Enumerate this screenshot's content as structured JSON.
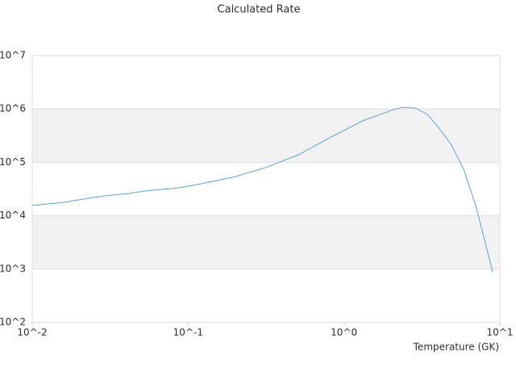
{
  "chart_data": {
    "type": "line",
    "title": "Calculated Rate",
    "x_label": "Temperature (GK)",
    "x_log": true,
    "y_log": true,
    "grid": true,
    "alternate_bands": true,
    "band_color": "#f2f2f2",
    "xlim": [
      0.01,
      10
    ],
    "ylim": [
      100,
      10000000
    ],
    "xticks": [
      {
        "value": 0.01,
        "label": "10^-2"
      },
      {
        "value": 0.1,
        "label": "10^-1"
      },
      {
        "value": 1,
        "label": "10^0"
      },
      {
        "value": 10,
        "label": "10^1"
      }
    ],
    "yticks": [
      {
        "value": 100,
        "label": "10^2"
      },
      {
        "value": 1000,
        "label": "10^3"
      },
      {
        "value": 10000,
        "label": "10^4"
      },
      {
        "value": 100000,
        "label": "10^5"
      },
      {
        "value": 1000000,
        "label": "10^6"
      },
      {
        "value": 10000000,
        "label": "10^7"
      }
    ],
    "x": [
      0.01,
      0.0161,
      0.0204,
      0.0292,
      0.0418,
      0.053,
      0.0853,
      0.108,
      0.196,
      0.316,
      0.51,
      0.82,
      1.32,
      2.13,
      2.4,
      2.87,
      3.43,
      4.1,
      4.9,
      5.86,
      7.0,
      7.9,
      9.0
    ],
    "series": [
      {
        "color": "#5aa5e8",
        "values": [
          15500,
          17800,
          20000,
          23500,
          26000,
          29000,
          33000,
          37000,
          53000,
          80000,
          138000,
          295000,
          600000,
          1000000,
          1070000,
          1040000,
          790000,
          425000,
          210000,
          74000,
          15500,
          3900,
          870
        ]
      }
    ]
  }
}
